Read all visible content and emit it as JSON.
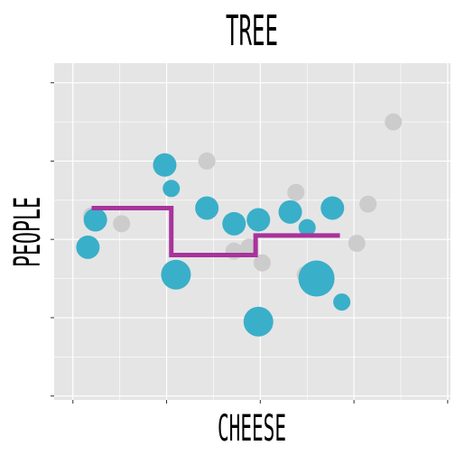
{
  "chart_data": {
    "type": "scatter",
    "title": "TREE",
    "xlabel": "CHEESE",
    "ylabel": "PEOPLE",
    "xlim": [
      -0.2,
      4.03
    ],
    "ylim": [
      -0.05,
      4.25
    ],
    "grid": true,
    "x_major_ticks": [
      0,
      1,
      2,
      3,
      4
    ],
    "y_major_ticks": [
      0,
      1,
      2,
      3,
      4
    ],
    "background_points": [
      {
        "x": 0.2,
        "y": 2.3,
        "size": 2
      },
      {
        "x": 0.52,
        "y": 2.2,
        "size": 2
      },
      {
        "x": 1.43,
        "y": 3.0,
        "size": 2
      },
      {
        "x": 1.72,
        "y": 1.85,
        "size": 2
      },
      {
        "x": 1.88,
        "y": 1.9,
        "size": 2
      },
      {
        "x": 2.02,
        "y": 1.7,
        "size": 2
      },
      {
        "x": 2.38,
        "y": 2.6,
        "size": 2
      },
      {
        "x": 2.48,
        "y": 1.55,
        "size": 2
      },
      {
        "x": 2.52,
        "y": 1.45,
        "size": 2
      },
      {
        "x": 3.03,
        "y": 1.95,
        "size": 2
      },
      {
        "x": 3.15,
        "y": 2.45,
        "size": 2
      },
      {
        "x": 3.42,
        "y": 3.5,
        "size": 2
      }
    ],
    "highlight_points": [
      {
        "x": 0.16,
        "y": 1.9,
        "size": 3
      },
      {
        "x": 0.24,
        "y": 2.25,
        "size": 3
      },
      {
        "x": 0.98,
        "y": 2.95,
        "size": 3
      },
      {
        "x": 1.05,
        "y": 2.65,
        "size": 2
      },
      {
        "x": 1.1,
        "y": 1.55,
        "size": 4
      },
      {
        "x": 1.43,
        "y": 2.4,
        "size": 3
      },
      {
        "x": 1.72,
        "y": 2.2,
        "size": 3
      },
      {
        "x": 1.98,
        "y": 2.25,
        "size": 3
      },
      {
        "x": 1.98,
        "y": 0.95,
        "size": 4
      },
      {
        "x": 2.32,
        "y": 2.35,
        "size": 3
      },
      {
        "x": 2.5,
        "y": 2.15,
        "size": 2
      },
      {
        "x": 2.6,
        "y": 1.5,
        "size": 5
      },
      {
        "x": 2.77,
        "y": 2.4,
        "size": 3
      },
      {
        "x": 2.87,
        "y": 1.2,
        "size": 2
      }
    ],
    "step_line": [
      {
        "x": 0.2,
        "y": 2.4
      },
      {
        "x": 1.05,
        "y": 2.4
      },
      {
        "x": 1.05,
        "y": 1.8
      },
      {
        "x": 1.13,
        "y": 1.8
      },
      {
        "x": 1.95,
        "y": 1.8
      },
      {
        "x": 1.95,
        "y": 2.05
      },
      {
        "x": 2.85,
        "y": 2.05
      }
    ],
    "colors": {
      "panel": "#e5e5e5",
      "grid": "#ffffff",
      "background_points": "#cccccc",
      "highlight_points": "#3aafc9",
      "step_line": "#a8339b",
      "text": "#000000"
    }
  }
}
